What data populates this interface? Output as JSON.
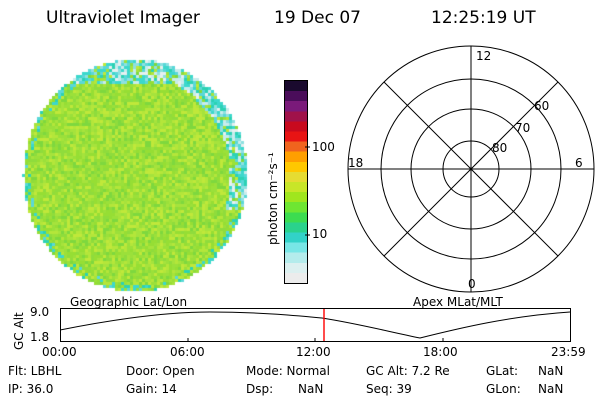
{
  "header": {
    "title": "Ultraviolet Imager",
    "date": "19 Dec 07",
    "time": "12:25:19 UT"
  },
  "colorbar": {
    "unit_label": "photon cm⁻²s⁻¹",
    "tick_100": "100",
    "tick_10": "10",
    "colors_top_to_bottom": [
      "#1a0a2e",
      "#4a0d5a",
      "#7a1a7a",
      "#a0124a",
      "#c80a1e",
      "#e81414",
      "#f0641e",
      "#ff9f00",
      "#ffc800",
      "#e6dc32",
      "#c8e628",
      "#a0e61e",
      "#6ee632",
      "#3cdc50",
      "#2ad28c",
      "#32d2c8",
      "#78e6e6",
      "#b4ecec",
      "#dcf0f0",
      "#ececec"
    ]
  },
  "image": {
    "disk_base_color": "#9be03a",
    "edge_color": "#3cd8cc"
  },
  "polar": {
    "labels": {
      "top": "12",
      "left": "18",
      "right": "6",
      "bottom": "0"
    },
    "latitudes": [
      "60",
      "70",
      "80"
    ]
  },
  "timeline": {
    "left_caption": "Geographic Lat/Lon",
    "right_caption": "Apex MLat/MLT",
    "y_axis_label": "GC Alt",
    "y_max": "9.0",
    "y_min": "1.8",
    "x_ticks": [
      "00:00",
      "06:00",
      "12:00",
      "18:00",
      "23:59"
    ],
    "marker_color": "#ff0000"
  },
  "status": {
    "flt": "Flt: LBHL",
    "ip": "IP: 36.0",
    "door": "Door: Open",
    "gain": "Gain: 14",
    "mode": "Mode: Normal",
    "dsp_label": "Dsp:",
    "dsp_value": "NaN",
    "gcalt": "GC Alt: 7.2 Re",
    "seq": "Seq: 39",
    "glat_label": "GLat:",
    "glat_value": "NaN",
    "glon_label": "GLon:",
    "glon_value": "NaN"
  }
}
